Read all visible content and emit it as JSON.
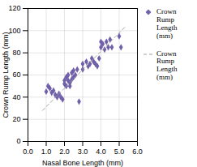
{
  "chart_data": {
    "type": "scatter",
    "xlabel": "Nasal Bone Length (mm)",
    "ylabel": "Crown Rump Length (mm)",
    "xlim": [
      0,
      6
    ],
    "ylim": [
      0,
      120
    ],
    "xticks": [
      0,
      1,
      2,
      3,
      4,
      5,
      6
    ],
    "yticks": [
      0,
      20,
      40,
      60,
      80,
      100,
      120
    ],
    "grid": true,
    "legend": "right",
    "series": [
      {
        "name": "Crown\nRump\nLength\n(mm)",
        "type": "scatter",
        "color": "#7060aa",
        "marker": "diamond",
        "x": [
          1.0,
          1.1,
          1.2,
          1.3,
          1.4,
          1.5,
          1.6,
          1.7,
          1.8,
          1.9,
          2.0,
          2.0,
          2.1,
          2.1,
          2.2,
          2.2,
          2.3,
          2.3,
          2.4,
          2.4,
          2.5,
          2.5,
          2.6,
          2.7,
          2.8,
          3.0,
          3.0,
          3.2,
          3.3,
          3.4,
          3.5,
          3.6,
          3.7,
          3.8,
          3.9,
          4.0,
          4.0,
          4.1,
          4.2,
          4.3,
          4.4,
          4.5,
          4.6,
          5.0,
          5.1
        ],
        "values": [
          45,
          50,
          48,
          44,
          46,
          42,
          40,
          43,
          40,
          38,
          55,
          52,
          58,
          50,
          60,
          55,
          53,
          50,
          56,
          62,
          58,
          64,
          60,
          65,
          36,
          65,
          70,
          72,
          68,
          70,
          75,
          72,
          70,
          68,
          75,
          90,
          85,
          88,
          83,
          90,
          85,
          92,
          85,
          95,
          85
        ]
      },
      {
        "name": "Crown\nRump\nLength\n(mm)",
        "type": "line",
        "color": "#a0a0a0",
        "line_style": "dashed",
        "x": [
          0.8,
          5.3
        ],
        "values": [
          28,
          103
        ]
      }
    ]
  }
}
